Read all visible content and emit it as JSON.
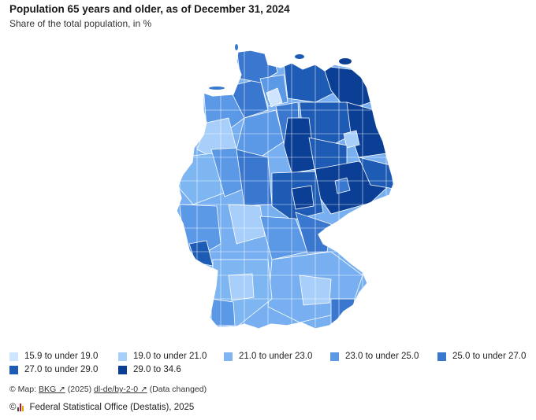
{
  "header": {
    "title": "Population 65 years and older, as of December 31, 2024",
    "subtitle": "Share of the total population, in %"
  },
  "map": {
    "region": "Germany",
    "unit": "districts",
    "colors": {
      "border": "#ffffff",
      "east_dominant": "#0b3f96",
      "west_dominant": "#7eb6f2"
    }
  },
  "legend": {
    "items": [
      {
        "label": "15.9 to under 19.0",
        "color": "#cfe5ff"
      },
      {
        "label": "19.0 to under 21.0",
        "color": "#a8cffa"
      },
      {
        "label": "21.0 to under 23.0",
        "color": "#7fb5f2"
      },
      {
        "label": "23.0 to under 25.0",
        "color": "#5b98e6"
      },
      {
        "label": "25.0 to under 27.0",
        "color": "#3a78d0"
      },
      {
        "label": "27.0 to under 29.0",
        "color": "#1e5bb4"
      },
      {
        "label": "29.0 to 34.6",
        "color": "#0b3f96"
      }
    ]
  },
  "footer": {
    "copyright_symbol": "©",
    "map_prefix": "Map:",
    "bkg_link": "BKG ↗",
    "year": "(2025)",
    "license_link": "dl-de/by-2-0 ↗",
    "changed_note": "(Data changed)",
    "source": "Federal Statistical Office (Destatis), 2025"
  }
}
